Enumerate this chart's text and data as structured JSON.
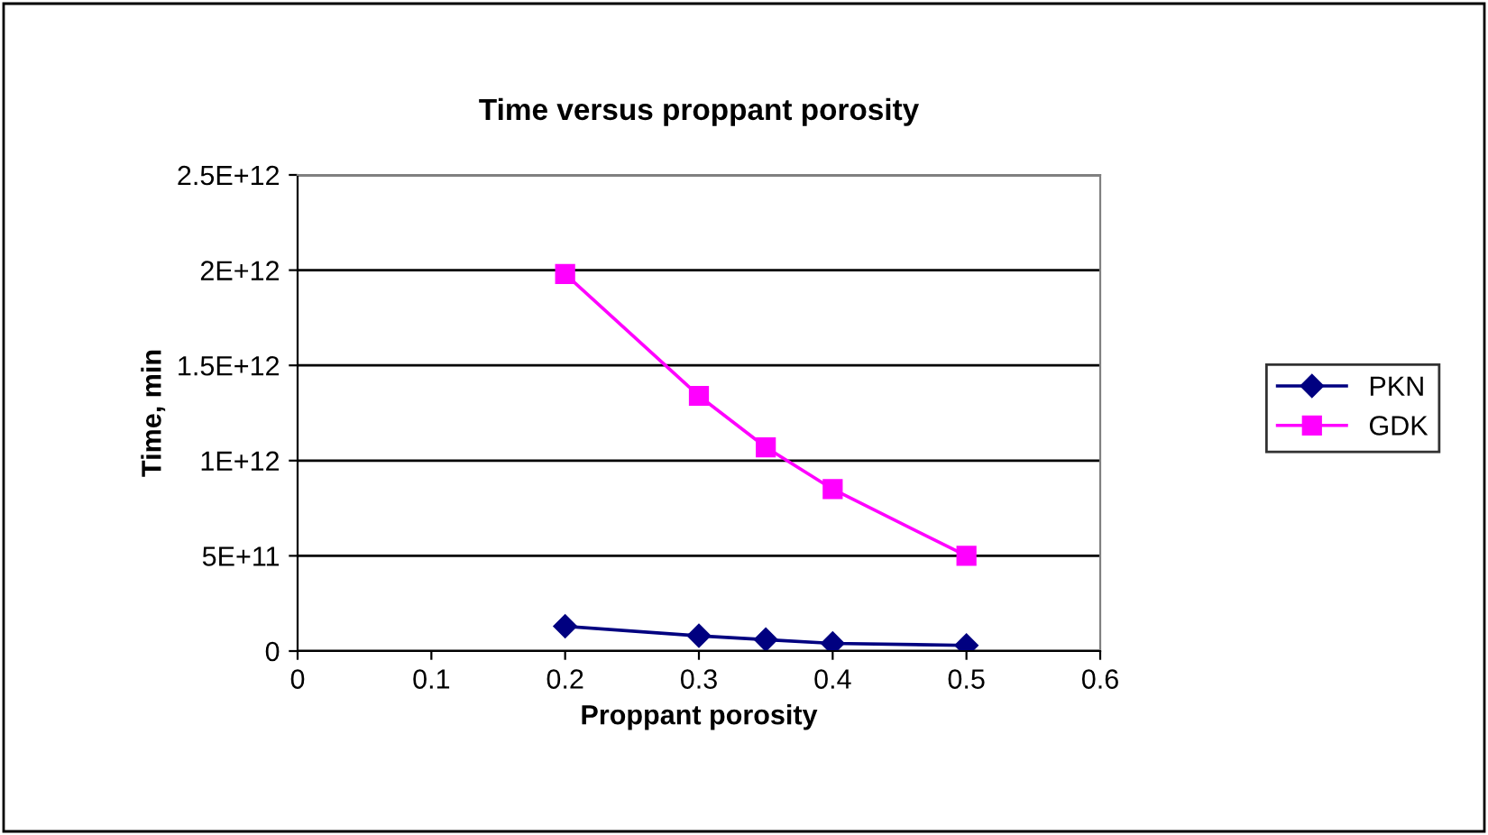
{
  "chart_data": {
    "type": "line",
    "title": "Time versus proppant porosity",
    "xlabel": "Proppant porosity",
    "ylabel": "Time, min",
    "x": [
      0.2,
      0.3,
      0.35,
      0.4,
      0.5
    ],
    "series": [
      {
        "name": "PKN",
        "color": "#000080",
        "marker": "diamond",
        "values": [
          130000000000.0,
          80000000000.0,
          60000000000.0,
          40000000000.0,
          30000000000.0
        ]
      },
      {
        "name": "GDK",
        "color": "#ff00ff",
        "marker": "square",
        "values": [
          1980000000000.0,
          1340000000000.0,
          1070000000000.0,
          850000000000.0,
          500000000000.0
        ]
      }
    ],
    "xlim": [
      0,
      0.6
    ],
    "xticks": [
      0,
      0.1,
      0.2,
      0.3,
      0.4,
      0.5,
      0.6
    ],
    "ylim": [
      0,
      2500000000000.0
    ],
    "yticks": [
      {
        "value": 0,
        "label": "0"
      },
      {
        "value": 500000000000.0,
        "label": "5E+11"
      },
      {
        "value": 1000000000000.0,
        "label": "1E+12"
      },
      {
        "value": 1500000000000.0,
        "label": "1.5E+12"
      },
      {
        "value": 2000000000000.0,
        "label": "2E+12"
      },
      {
        "value": 2500000000000.0,
        "label": "2.5E+12"
      }
    ],
    "grid": "y",
    "legend": "right"
  }
}
